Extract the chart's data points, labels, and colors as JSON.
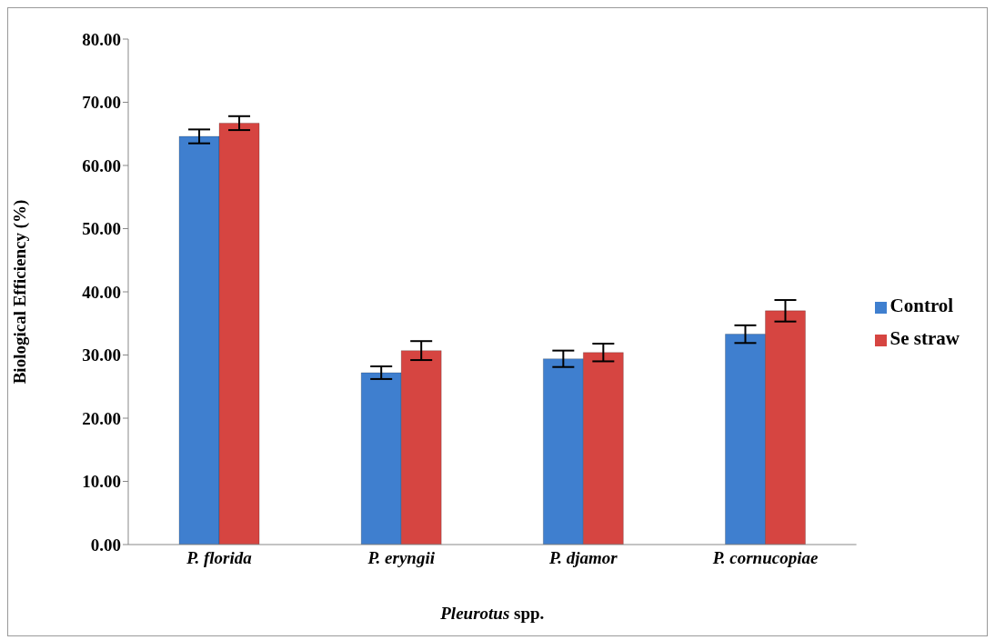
{
  "chart_data": {
    "type": "bar",
    "xlabel": "Pleurotus spp.",
    "ylabel": "Biological Efficiency (%)",
    "categories": [
      "P. florida",
      "P. eryngii",
      "P. djamor",
      "P. cornucopiae"
    ],
    "series": [
      {
        "name": "Control",
        "color": "#3f7fcf",
        "values": [
          64.6,
          27.2,
          29.4,
          33.3
        ],
        "errors": [
          1.1,
          1,
          1.3,
          1.4
        ]
      },
      {
        "name": "Se straw",
        "color": "#d64541",
        "values": [
          66.7,
          30.7,
          30.4,
          37.0
        ],
        "errors": [
          1.1,
          1.5,
          1.4,
          1.7
        ]
      }
    ],
    "ylim": [
      0,
      80
    ],
    "yticks": [
      {
        "value": 0,
        "label": "0.00"
      },
      {
        "value": 10,
        "label": "10.00"
      },
      {
        "value": 20,
        "label": "20.00"
      },
      {
        "value": 30,
        "label": "30.00"
      },
      {
        "value": 40,
        "label": "40.00"
      },
      {
        "value": 50,
        "label": "50.00"
      },
      {
        "value": 60,
        "label": "60.00"
      },
      {
        "value": 70,
        "label": "70.00"
      },
      {
        "value": 80,
        "label": "80.00"
      }
    ],
    "grid": false,
    "legend": "right"
  }
}
